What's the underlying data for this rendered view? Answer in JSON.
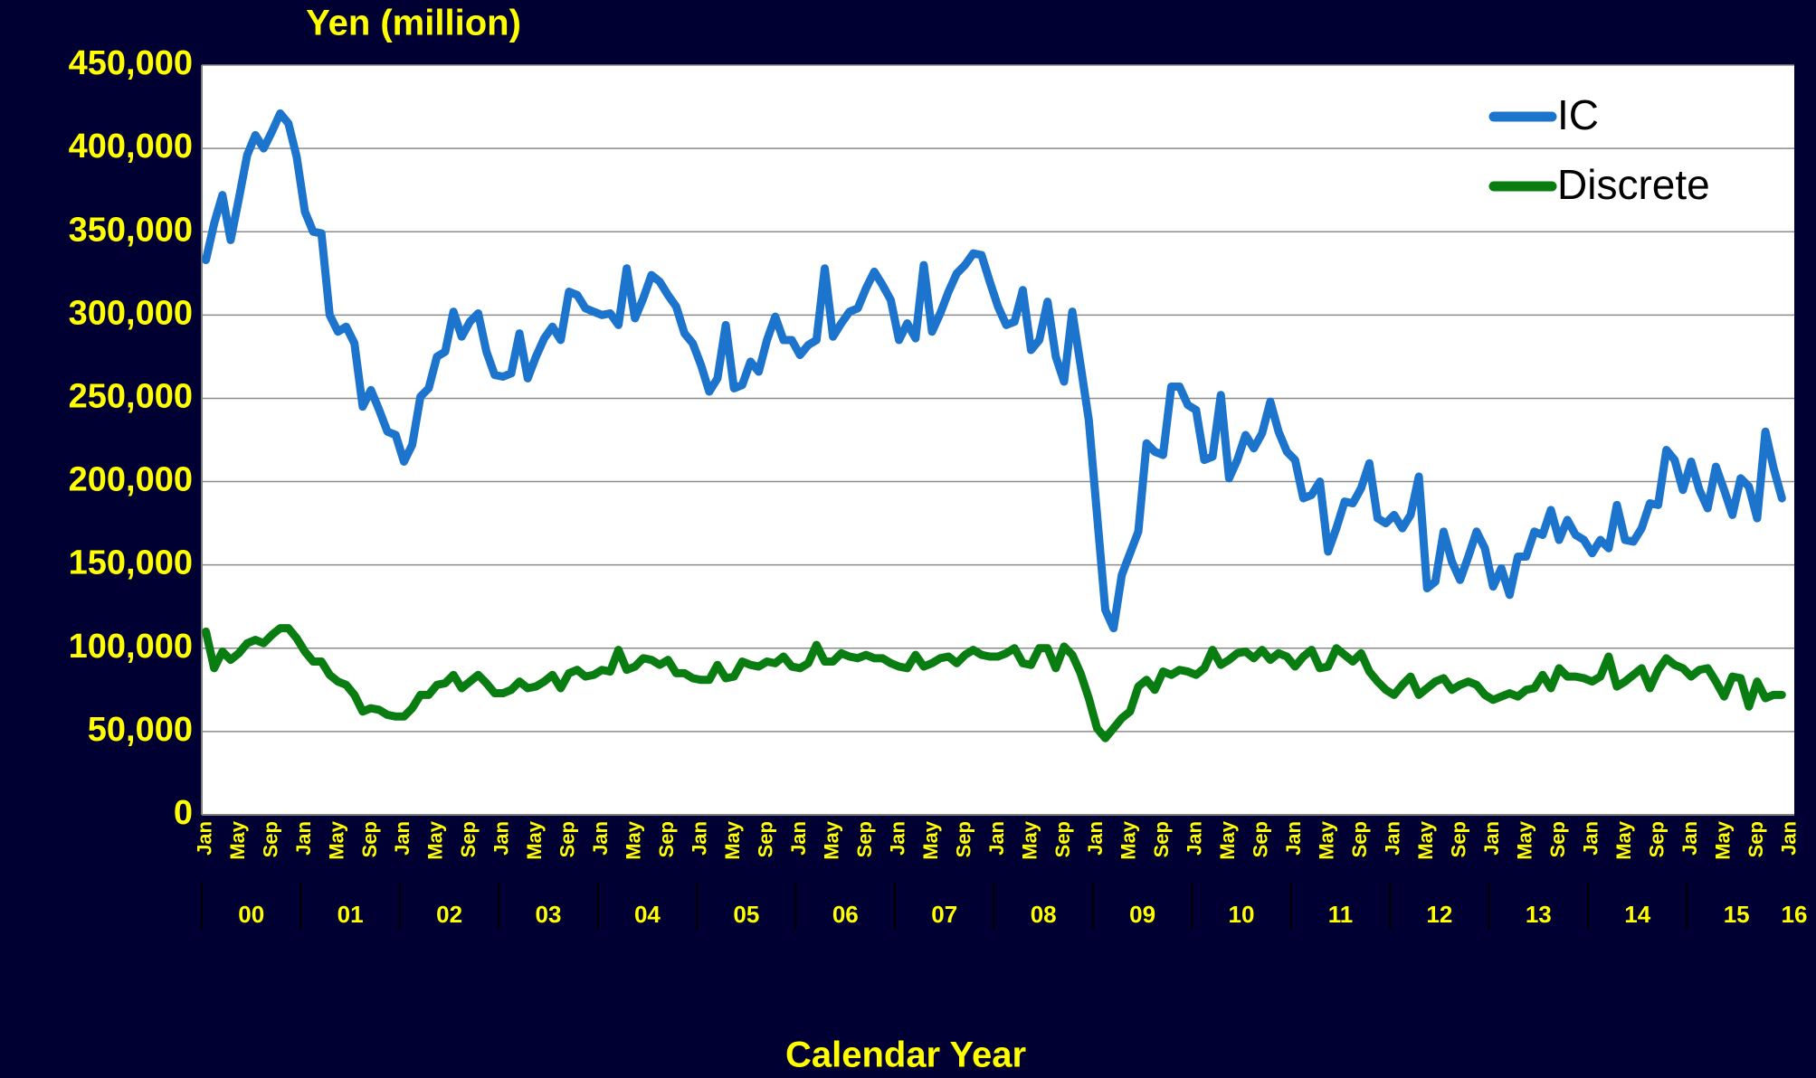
{
  "chart_data": {
    "type": "line",
    "title": "Yen (million)",
    "x_label": "Calendar Year",
    "categories": [
      "Jan",
      null,
      null,
      null,
      "May",
      null,
      null,
      null,
      "Sep",
      null,
      null,
      null,
      "Jan",
      null,
      null,
      null,
      "May",
      null,
      null,
      null,
      "Sep",
      null,
      null,
      null,
      "Jan",
      null,
      null,
      null,
      "May",
      null,
      null,
      null,
      "Sep",
      null,
      null,
      null,
      "Jan",
      null,
      null,
      null,
      "May",
      null,
      null,
      null,
      "Sep",
      null,
      null,
      null,
      "Jan",
      null,
      null,
      null,
      "May",
      null,
      null,
      null,
      "Sep",
      null,
      null,
      null,
      "Jan",
      null,
      null,
      null,
      "May",
      null,
      null,
      null,
      "Sep",
      null,
      null,
      null,
      "Jan",
      null,
      null,
      null,
      "May",
      null,
      null,
      null,
      "Sep",
      null,
      null,
      null,
      "Jan",
      null,
      null,
      null,
      "May",
      null,
      null,
      null,
      "Sep",
      null,
      null,
      null,
      "Jan",
      null,
      null,
      null,
      "May",
      null,
      null,
      null,
      "Sep",
      null,
      null,
      null,
      "Jan",
      null,
      null,
      null,
      "May",
      null,
      null,
      null,
      "Sep",
      null,
      null,
      null,
      "Jan",
      null,
      null,
      null,
      "May",
      null,
      null,
      null,
      "Sep",
      null,
      null,
      null,
      "Jan",
      null,
      null,
      null,
      "May",
      null,
      null,
      null,
      "Sep",
      null,
      null,
      null,
      "Jan",
      null,
      null,
      null,
      "May",
      null,
      null,
      null,
      "Sep",
      null,
      null,
      null,
      "Jan",
      null,
      null,
      null,
      "May",
      null,
      null,
      null,
      "Sep",
      null,
      null,
      null,
      "Jan",
      null,
      null,
      null,
      "May",
      null,
      null,
      null,
      "Sep",
      null,
      null,
      null,
      "Jan",
      null,
      null,
      null,
      "May",
      null,
      null,
      null,
      "Sep",
      null,
      null,
      null,
      "Jan"
    ],
    "years": [
      "00",
      "01",
      "02",
      "03",
      "04",
      "05",
      "06",
      "07",
      "08",
      "09",
      "10",
      "11",
      "12",
      "13",
      "14",
      "15",
      "16"
    ],
    "series": [
      {
        "name": "IC",
        "color": "#1c74cc",
        "values": [
          333000,
          355000,
          372000,
          345000,
          370000,
          396000,
          408000,
          400000,
          410000,
          421000,
          415000,
          395000,
          362000,
          350000,
          349000,
          300000,
          290000,
          293000,
          283000,
          245000,
          255000,
          243000,
          230000,
          228000,
          212000,
          222000,
          251000,
          256000,
          275000,
          278000,
          302000,
          287000,
          296000,
          301000,
          278000,
          264000,
          263000,
          265000,
          289000,
          262000,
          275000,
          286000,
          293000,
          285000,
          314000,
          312000,
          304000,
          302000,
          300000,
          301000,
          294000,
          328000,
          298000,
          310000,
          324000,
          320000,
          312000,
          305000,
          289000,
          283000,
          270000,
          254000,
          262000,
          294000,
          256000,
          258000,
          272000,
          266000,
          285000,
          299000,
          285000,
          285000,
          276000,
          282000,
          285000,
          328000,
          287000,
          295000,
          302000,
          304000,
          316000,
          326000,
          318000,
          309000,
          285000,
          295000,
          286000,
          330000,
          290000,
          301000,
          314000,
          325000,
          330000,
          337000,
          336000,
          320000,
          305000,
          294000,
          296000,
          315000,
          279000,
          285000,
          308000,
          275000,
          260000,
          302000,
          270000,
          237000,
          180000,
          123000,
          112000,
          144000,
          157000,
          170000,
          223000,
          218000,
          216000,
          257000,
          257000,
          246000,
          243000,
          213000,
          215000,
          252000,
          202000,
          213000,
          228000,
          220000,
          229000,
          248000,
          230000,
          218000,
          213000,
          190000,
          192000,
          200000,
          158000,
          172000,
          188000,
          187000,
          196000,
          211000,
          178000,
          175000,
          180000,
          172000,
          180000,
          203000,
          136000,
          140000,
          170000,
          152000,
          141000,
          155000,
          170000,
          160000,
          137000,
          148000,
          132000,
          155000,
          155000,
          170000,
          168000,
          183000,
          165000,
          177000,
          168000,
          165000,
          157000,
          165000,
          160000,
          186000,
          165000,
          164000,
          172000,
          187000,
          186000,
          219000,
          213000,
          195000,
          212000,
          195000,
          184000,
          209000,
          195000,
          180000,
          202000,
          197000,
          178000,
          230000,
          208000,
          190000,
          null
        ]
      },
      {
        "name": "Discrete",
        "color": "#0a7d12",
        "values": [
          110000,
          88000,
          98000,
          93000,
          97000,
          103000,
          105000,
          103000,
          108000,
          112000,
          112000,
          106000,
          98000,
          92000,
          92000,
          84000,
          80000,
          78000,
          72000,
          62000,
          64000,
          63000,
          60000,
          59000,
          59000,
          64000,
          72000,
          72000,
          78000,
          79000,
          84000,
          76000,
          80000,
          84000,
          79000,
          73000,
          73000,
          75000,
          80000,
          76000,
          77000,
          80000,
          84000,
          76000,
          85000,
          87000,
          83000,
          84000,
          87000,
          86000,
          99000,
          87000,
          89000,
          94000,
          93000,
          90000,
          93000,
          85000,
          85000,
          82000,
          81000,
          81000,
          90000,
          82000,
          83000,
          92000,
          90000,
          89000,
          92000,
          91000,
          95000,
          89000,
          88000,
          91000,
          102000,
          92000,
          92000,
          97000,
          95000,
          94000,
          96000,
          94000,
          94000,
          91000,
          89000,
          88000,
          96000,
          89000,
          91000,
          94000,
          95000,
          91000,
          96000,
          99000,
          96000,
          95000,
          95000,
          97000,
          100000,
          91000,
          90000,
          100000,
          100000,
          88000,
          101000,
          96000,
          85000,
          70000,
          52000,
          46000,
          52000,
          58000,
          62000,
          77000,
          81000,
          75000,
          86000,
          84000,
          87000,
          86000,
          84000,
          88000,
          99000,
          90000,
          93000,
          97000,
          98000,
          94000,
          99000,
          93000,
          97000,
          95000,
          89000,
          95000,
          99000,
          88000,
          89000,
          100000,
          96000,
          92000,
          97000,
          86000,
          80000,
          75000,
          72000,
          78000,
          83000,
          72000,
          76000,
          80000,
          82000,
          75000,
          78000,
          80000,
          78000,
          72000,
          69000,
          71000,
          73000,
          71000,
          75000,
          76000,
          84000,
          76000,
          88000,
          83000,
          83000,
          82000,
          80000,
          83000,
          95000,
          77000,
          80000,
          84000,
          88000,
          76000,
          87000,
          94000,
          90000,
          88000,
          83000,
          87000,
          88000,
          80000,
          71000,
          83000,
          82000,
          65000,
          80000,
          70000,
          72000,
          72000,
          null
        ]
      }
    ],
    "ylim": [
      0,
      450000
    ],
    "yticks": [
      0,
      {
        "value": 50000,
        "label": "50,000"
      },
      {
        "value": 100000,
        "label": "100,000"
      },
      {
        "value": 150000,
        "label": "150,000"
      },
      {
        "value": 200000,
        "label": "200,000"
      },
      {
        "value": 250000,
        "label": "250,000"
      },
      {
        "value": 300000,
        "label": "300,000"
      },
      {
        "value": 350000,
        "label": "350,000"
      },
      {
        "value": 400000,
        "label": "400,000"
      },
      {
        "value": 450000,
        "label": "450,000"
      }
    ],
    "grid": true,
    "legend": "upper right"
  }
}
